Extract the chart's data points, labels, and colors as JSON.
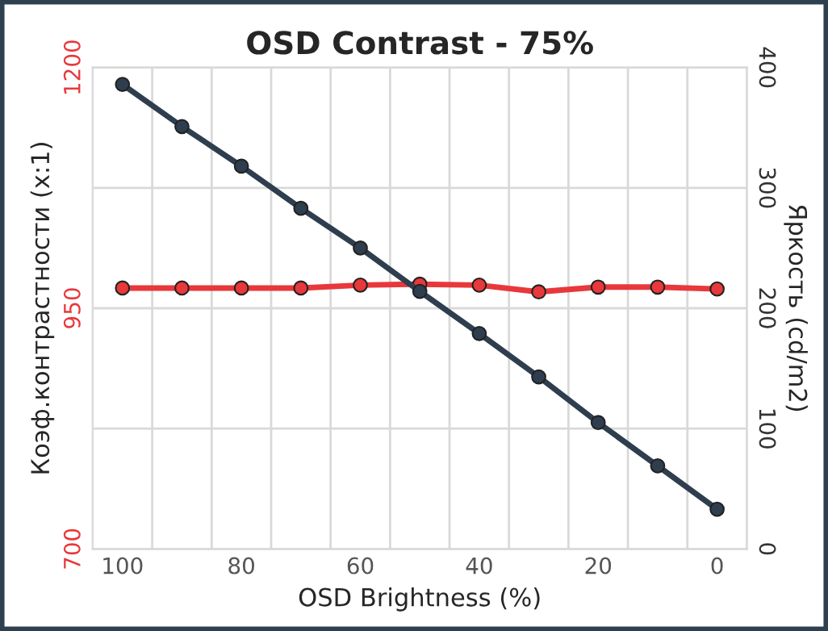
{
  "chart_data": {
    "type": "line",
    "title": "OSD Contrast - 75%",
    "xlabel": "OSD Brightness (%)",
    "ylabel": "Коэф.контрастности (x:1)",
    "y2label": "Яркость (cd/m2)",
    "categories": [
      "100",
      null,
      "80",
      null,
      "60",
      null,
      "40",
      null,
      "20",
      null,
      "0"
    ],
    "series": [
      {
        "color": "#e8383b",
        "values": [
          971,
          971,
          971,
          971,
          974,
          975,
          974,
          967,
          972,
          972,
          970
        ]
      },
      {
        "color": "#2f3e4e",
        "axis": "y2",
        "values": [
          386,
          351,
          318,
          283,
          250,
          214,
          179,
          143,
          105,
          69,
          33
        ]
      }
    ],
    "ylim": [
      700,
      1200
    ],
    "yticks": [
      700,
      {
        "value": 825,
        "label": null
      },
      950,
      {
        "value": 1075,
        "label": null
      },
      1200
    ],
    "y2lim": [
      0,
      400
    ],
    "y2ticks": [
      0,
      100,
      200,
      300,
      400
    ],
    "grid": true,
    "marker": "circle",
    "line_style": "solid"
  }
}
